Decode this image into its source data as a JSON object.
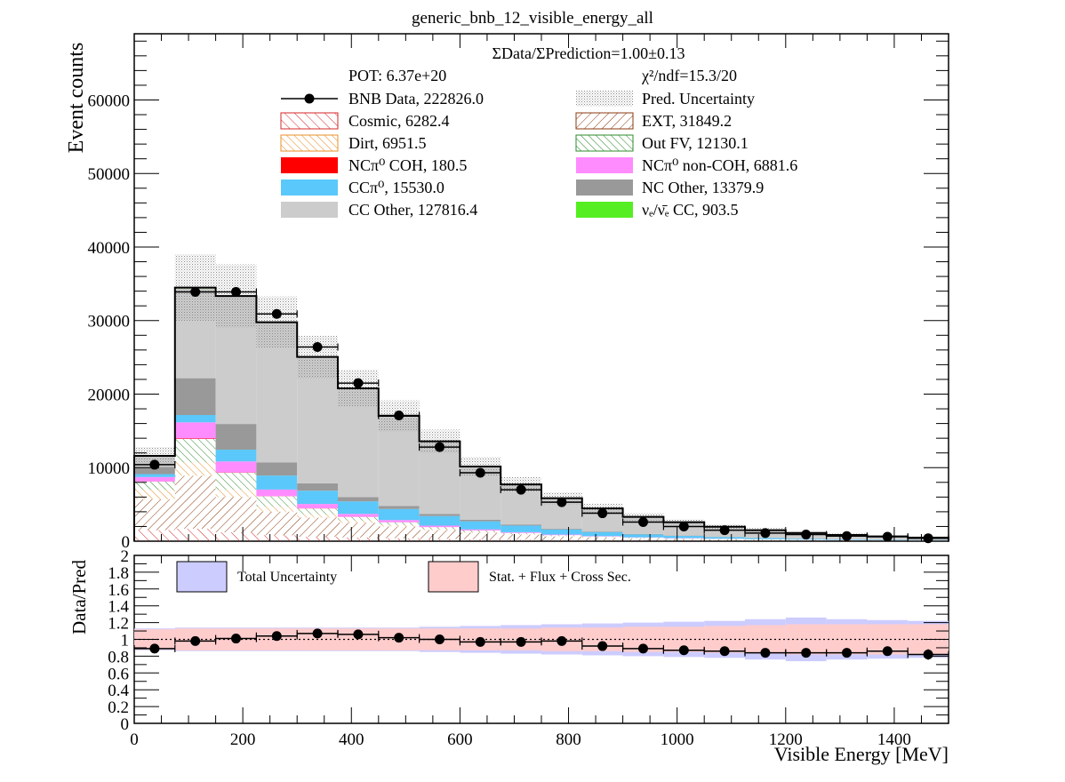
{
  "chart_data": [
    {
      "type": "bar",
      "stacked": true,
      "title": "generic_bnb_12_visible_energy_all",
      "ylabel": "Event counts",
      "xlabel": "",
      "xlim": [
        0,
        1500
      ],
      "ylim": [
        0,
        69000
      ],
      "y_ticks": [
        0,
        10000,
        20000,
        30000,
        40000,
        50000,
        60000
      ],
      "bin_edges": [
        0,
        75,
        150,
        225,
        300,
        375,
        450,
        525,
        600,
        675,
        750,
        825,
        900,
        975,
        1050,
        1125,
        1200,
        1275,
        1350,
        1425,
        1500
      ],
      "annotations": {
        "ratio_text": "ΣData/ΣPrediction=1.00±0.13",
        "pot_text": "POT: 6.37e+20",
        "chi2_text": "χ²/ndf=15.3/20"
      },
      "colors": {
        "cosmic": "#d62728",
        "ext": "#8b3a0f",
        "dirt": "#e8902a",
        "outfv": "#2e8b2e",
        "nc_pi0_coh": "#ff0000",
        "nc_pi0_noncoh": "#ff8cff",
        "cc_pi0": "#5ac8fa",
        "nc_other": "#999999",
        "cc_other": "#cccccc",
        "nue": "#55ee22",
        "uncert": "#999999"
      },
      "series": [
        {
          "key": "cosmic",
          "name": "Cosmic, 6282.4",
          "fill": "hatch-forward",
          "values": [
            1500,
            1700,
            1200,
            800,
            600,
            500,
            400,
            300,
            250,
            200,
            150,
            100,
            80,
            60,
            50,
            40,
            30,
            25,
            20,
            15
          ]
        },
        {
          "key": "ext",
          "name": "EXT, 31849.2",
          "fill": "hatch-back",
          "values": [
            4200,
            7200,
            4800,
            3200,
            2600,
            2000,
            1600,
            1200,
            900,
            700,
            500,
            400,
            300,
            250,
            200,
            160,
            130,
            100,
            80,
            60
          ]
        },
        {
          "key": "dirt",
          "name": "Dirt, 6951.5",
          "fill": "hatch-back",
          "values": [
            1300,
            1800,
            1000,
            700,
            450,
            300,
            220,
            160,
            120,
            90,
            70,
            50,
            40,
            30,
            25,
            20,
            15,
            12,
            10,
            8
          ]
        },
        {
          "key": "outfv",
          "name": "Out FV, 12130.1",
          "fill": "hatch-back",
          "values": [
            1100,
            3200,
            2300,
            1400,
            800,
            500,
            350,
            250,
            180,
            130,
            100,
            80,
            60,
            50,
            40,
            30,
            25,
            20,
            15,
            12
          ]
        },
        {
          "key": "nc_pi0_coh",
          "name": "NCπ⁰ COH,  180.5",
          "fill": "solid",
          "values": [
            20,
            60,
            40,
            25,
            15,
            10,
            5,
            3,
            2,
            0,
            0,
            0,
            0,
            0,
            0,
            0,
            0,
            0,
            0,
            0
          ]
        },
        {
          "key": "nc_pi0_noncoh",
          "name": "NCπ⁰ non-COH,  6881.6",
          "fill": "solid",
          "values": [
            600,
            2200,
            1500,
            900,
            600,
            400,
            300,
            200,
            150,
            100,
            80,
            60,
            40,
            30,
            20,
            15,
            10,
            8,
            6,
            5
          ]
        },
        {
          "key": "cc_pi0",
          "name": "CCπ⁰, 15530.0",
          "fill": "solid",
          "values": [
            400,
            1000,
            1600,
            1900,
            1800,
            1700,
            1500,
            1300,
            1100,
            900,
            700,
            550,
            400,
            300,
            220,
            160,
            120,
            90,
            70,
            50
          ]
        },
        {
          "key": "nc_other",
          "name": "NC Other, 13379.9",
          "fill": "solid",
          "values": [
            1000,
            5000,
            3500,
            1800,
            1000,
            600,
            400,
            300,
            200,
            150,
            100,
            80,
            60,
            45,
            35,
            25,
            20,
            15,
            12,
            10
          ]
        },
        {
          "key": "cc_other",
          "name": "CC Other, 127816.4",
          "fill": "solid",
          "values": [
            1400,
            12200,
            17300,
            18950,
            17100,
            14700,
            12200,
            9800,
            7200,
            5400,
            4100,
            3100,
            2300,
            1800,
            1350,
            1030,
            760,
            560,
            420,
            320
          ]
        },
        {
          "key": "nue",
          "name": "νₑ/ν̄ₑ CC, 903.5",
          "fill": "solid",
          "values": [
            80,
            120,
            100,
            100,
            90,
            80,
            70,
            60,
            50,
            45,
            40,
            35,
            30,
            25,
            20,
            18,
            15,
            12,
            10,
            8
          ]
        }
      ],
      "data": {
        "name": "BNB Data, 222826.0",
        "x": [
          37.5,
          112.5,
          187.5,
          262.5,
          337.5,
          412.5,
          487.5,
          562.5,
          637.5,
          712.5,
          787.5,
          862.5,
          937.5,
          1012.5,
          1087.5,
          1162.5,
          1237.5,
          1312.5,
          1387.5,
          1462.5
        ],
        "y": [
          10400,
          33900,
          33900,
          30900,
          26400,
          21500,
          17100,
          12800,
          9300,
          7000,
          5300,
          3800,
          2600,
          2000,
          1500,
          1100,
          900,
          700,
          600,
          400
        ]
      },
      "uncertainty": {
        "name": "Pred. Uncertainty",
        "values": [
          1200,
          4500,
          4300,
          3500,
          2900,
          2500,
          2100,
          1600,
          1300,
          1000,
          800,
          650,
          500,
          400,
          330,
          280,
          230,
          190,
          160,
          130
        ]
      },
      "legend": [
        [
          "data",
          "uncertainty"
        ],
        [
          "cosmic",
          "ext"
        ],
        [
          "dirt",
          "outfv"
        ],
        [
          "nc_pi0_coh",
          "nc_pi0_noncoh"
        ],
        [
          "cc_pi0",
          "nc_other"
        ],
        [
          "cc_other",
          "nue"
        ]
      ]
    },
    {
      "type": "scatter",
      "title": "",
      "ylabel": "Data/Pred",
      "xlabel": "Visible Energy [MeV]",
      "xlim": [
        0,
        1500
      ],
      "ylim": [
        0,
        2
      ],
      "y_ticks": [
        0,
        0.2,
        0.4,
        0.6,
        0.8,
        1,
        1.2,
        1.4,
        1.6,
        1.8,
        2
      ],
      "y_tick_labels": [
        "0",
        "0.2",
        "0.4",
        "0.6",
        "0.8",
        "1",
        "1.2",
        "1.4",
        "1.6",
        "1.8",
        "2"
      ],
      "x_ticks": [
        0,
        200,
        400,
        600,
        800,
        1000,
        1200,
        1400
      ],
      "x_tick_labels": [
        "0",
        "200",
        "400",
        "600",
        "800",
        "1000",
        "1200",
        "1400"
      ],
      "reference_line": 1,
      "colors": {
        "total": "#ccccff",
        "stat": "#ffcccc"
      },
      "legend": [
        {
          "key": "total",
          "name": "Total Uncertainty"
        },
        {
          "key": "stat",
          "name": "Stat. + Flux + Cross Sec."
        }
      ],
      "total_band": [
        0.13,
        0.14,
        0.14,
        0.14,
        0.14,
        0.14,
        0.14,
        0.15,
        0.16,
        0.17,
        0.18,
        0.19,
        0.2,
        0.21,
        0.22,
        0.24,
        0.26,
        0.24,
        0.23,
        0.22
      ],
      "stat_band": [
        0.12,
        0.13,
        0.13,
        0.13,
        0.13,
        0.13,
        0.13,
        0.13,
        0.13,
        0.13,
        0.14,
        0.14,
        0.15,
        0.15,
        0.16,
        0.17,
        0.18,
        0.18,
        0.18,
        0.18
      ],
      "points": {
        "x": [
          37.5,
          112.5,
          187.5,
          262.5,
          337.5,
          412.5,
          487.5,
          562.5,
          637.5,
          712.5,
          787.5,
          862.5,
          937.5,
          1012.5,
          1087.5,
          1162.5,
          1237.5,
          1312.5,
          1387.5,
          1462.5
        ],
        "y": [
          0.89,
          0.98,
          1.01,
          1.04,
          1.07,
          1.06,
          1.02,
          1.0,
          0.97,
          0.97,
          0.98,
          0.92,
          0.89,
          0.87,
          0.86,
          0.84,
          0.84,
          0.84,
          0.86,
          0.82
        ]
      }
    }
  ]
}
